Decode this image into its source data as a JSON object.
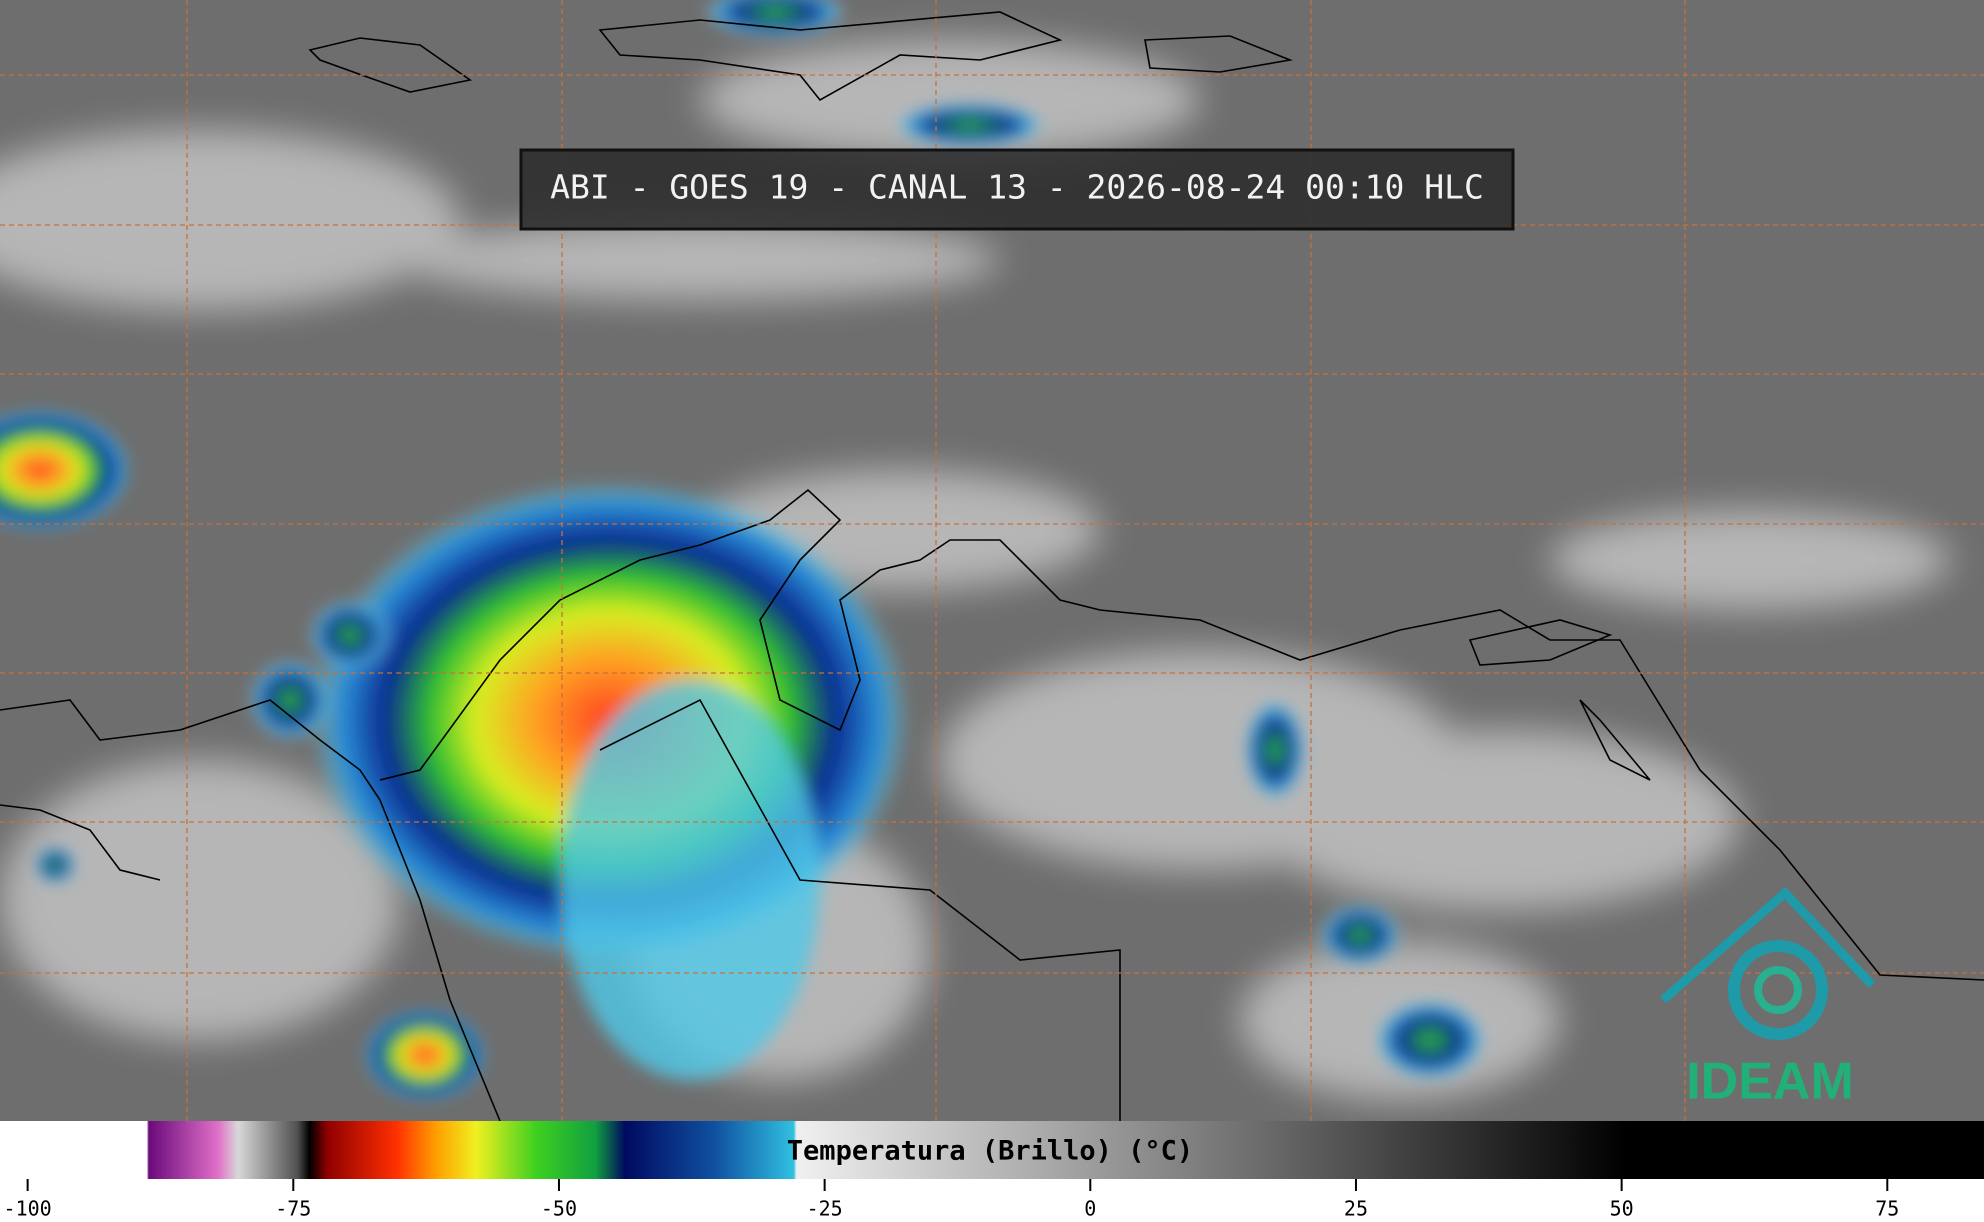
{
  "header": {
    "title": "ABI - GOES 19 - CANAL 13 - 2026-08-24 00:10 HLC"
  },
  "logo": {
    "text": "IDEAM"
  },
  "colorbar": {
    "label": "Temperatura (Brillo) (°C)",
    "xlim": [
      -102.6,
      84.1
    ],
    "xticks": [
      -100,
      -75,
      -50,
      -25,
      0,
      25,
      50,
      75
    ]
  }
}
